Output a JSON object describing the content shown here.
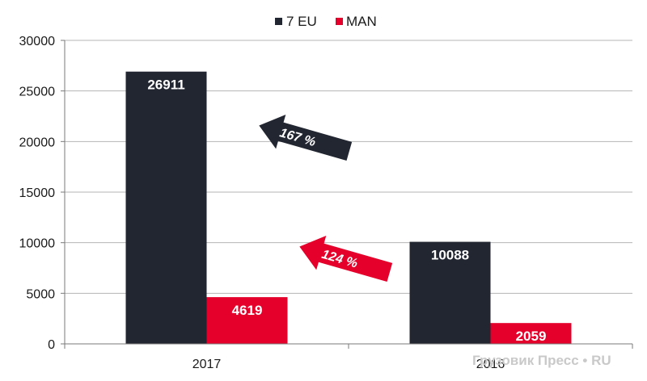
{
  "chart_data": {
    "type": "bar",
    "categories": [
      "2017",
      "2016"
    ],
    "series": [
      {
        "name": "7 EU",
        "values": [
          26911,
          10088
        ],
        "color": "#222631"
      },
      {
        "name": "MAN",
        "values": [
          4619,
          2059
        ],
        "color": "#e4002b"
      }
    ],
    "ylim": [
      0,
      30000
    ],
    "yticks": [
      0,
      5000,
      10000,
      15000,
      20000,
      25000,
      30000
    ],
    "grid": true,
    "legend_position": "top-center",
    "annotations": [
      {
        "text": "167 %",
        "color": "#222631"
      },
      {
        "text": "124 %",
        "color": "#e4002b"
      }
    ]
  },
  "watermark": "Грузовик Пресс • RU"
}
